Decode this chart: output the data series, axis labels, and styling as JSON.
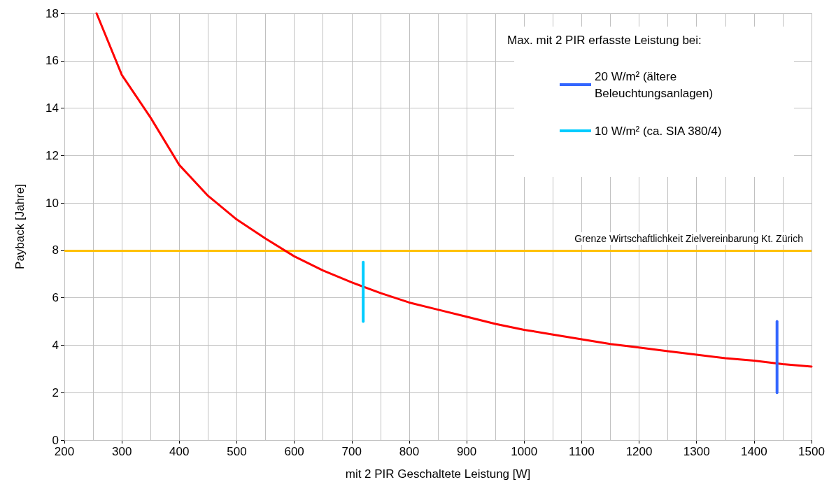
{
  "chart_data": {
    "type": "line",
    "xlabel": "mit 2 PIR Geschaltete Leistung [W]",
    "ylabel": "Payback [Jahre]",
    "legend_title": "Max. mit 2 PIR erfasste Leistung bei:",
    "xlim": [
      200,
      1500
    ],
    "ylim": [
      0,
      18
    ],
    "xticks": [
      200,
      {
        "value": 250,
        "label": null
      },
      300,
      {
        "value": 350,
        "label": null
      },
      400,
      {
        "value": 450,
        "label": null
      },
      500,
      {
        "value": 550,
        "label": null
      },
      600,
      {
        "value": 650,
        "label": null
      },
      700,
      {
        "value": 750,
        "label": null
      },
      800,
      {
        "value": 850,
        "label": null
      },
      900,
      {
        "value": 950,
        "label": null
      },
      1000,
      {
        "value": 1050,
        "label": null
      },
      1100,
      {
        "value": 1150,
        "label": null
      },
      1200,
      {
        "value": 1250,
        "label": null
      },
      1300,
      {
        "value": 1350,
        "label": null
      },
      1400,
      {
        "value": 1450,
        "label": null
      },
      1500
    ],
    "yticks": [
      0,
      2,
      4,
      6,
      8,
      10,
      12,
      14,
      16,
      18
    ],
    "grid": true,
    "legend": "top right",
    "marker": "none",
    "line_style": "solid",
    "series": [
      {
        "color": "#ff0000",
        "x": [
          256,
          300,
          350,
          400,
          450,
          500,
          550,
          600,
          650,
          700,
          750,
          800,
          850,
          900,
          950,
          1000,
          1050,
          1100,
          1150,
          1200,
          1250,
          1300,
          1350,
          1400,
          1450,
          1500
        ],
        "values": [
          18,
          15.4,
          13.6,
          11.6,
          10.3,
          9.3,
          8.5,
          7.75,
          7.15,
          6.65,
          6.2,
          5.8,
          5.5,
          5.2,
          4.9,
          4.65,
          4.45,
          4.25,
          4.05,
          3.9,
          3.75,
          3.6,
          3.45,
          3.35,
          3.2,
          3.1
        ]
      },
      {
        "name": "20 W/m² (ältere Beleuchtungsanlagen)",
        "color": "#3366ff",
        "x": [
          1440,
          1440
        ],
        "values": [
          2,
          5
        ]
      },
      {
        "name": "10 W/m² (ca. SIA 380/4)",
        "color": "#00ccff",
        "x": [
          720,
          720
        ],
        "values": [
          5,
          7.5
        ]
      }
    ],
    "ref_lines": [
      {
        "axis": "y",
        "value": 8,
        "label": "Grenze Wirtschaftlichkeit Zielvereinbarung Kt. Zürich",
        "color": "#ffc000"
      }
    ]
  }
}
